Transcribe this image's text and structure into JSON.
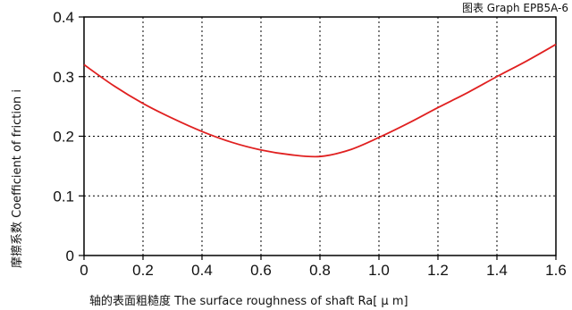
{
  "figure_caption": "图表 Graph EPB5A-6",
  "chart_data": {
    "type": "line",
    "xlabel": "轴的表面粗糙度 The surface roughness of shaft  Ra[ μ m]",
    "ylabel": "摩擦系数 Coefficient of friction i",
    "xlim": [
      0,
      1.6
    ],
    "ylim": [
      0,
      0.4
    ],
    "x_ticks": [
      "0",
      "0.2",
      "0.4",
      "0.6",
      "0.8",
      "1.0",
      "1.2",
      "1.4",
      "1.6"
    ],
    "y_ticks": [
      "0",
      "0.1",
      "0.2",
      "0.3",
      "0.4"
    ],
    "grid": true,
    "series": [
      {
        "color": "#e02020",
        "x": [
          0,
          0.1,
          0.2,
          0.3,
          0.4,
          0.5,
          0.6,
          0.7,
          0.8,
          0.9,
          1.0,
          1.1,
          1.2,
          1.3,
          1.4,
          1.5,
          1.6
        ],
        "y": [
          0.32,
          0.285,
          0.255,
          0.23,
          0.208,
          0.19,
          0.177,
          0.169,
          0.166,
          0.177,
          0.198,
          0.222,
          0.248,
          0.273,
          0.3,
          0.326,
          0.354
        ]
      }
    ]
  }
}
